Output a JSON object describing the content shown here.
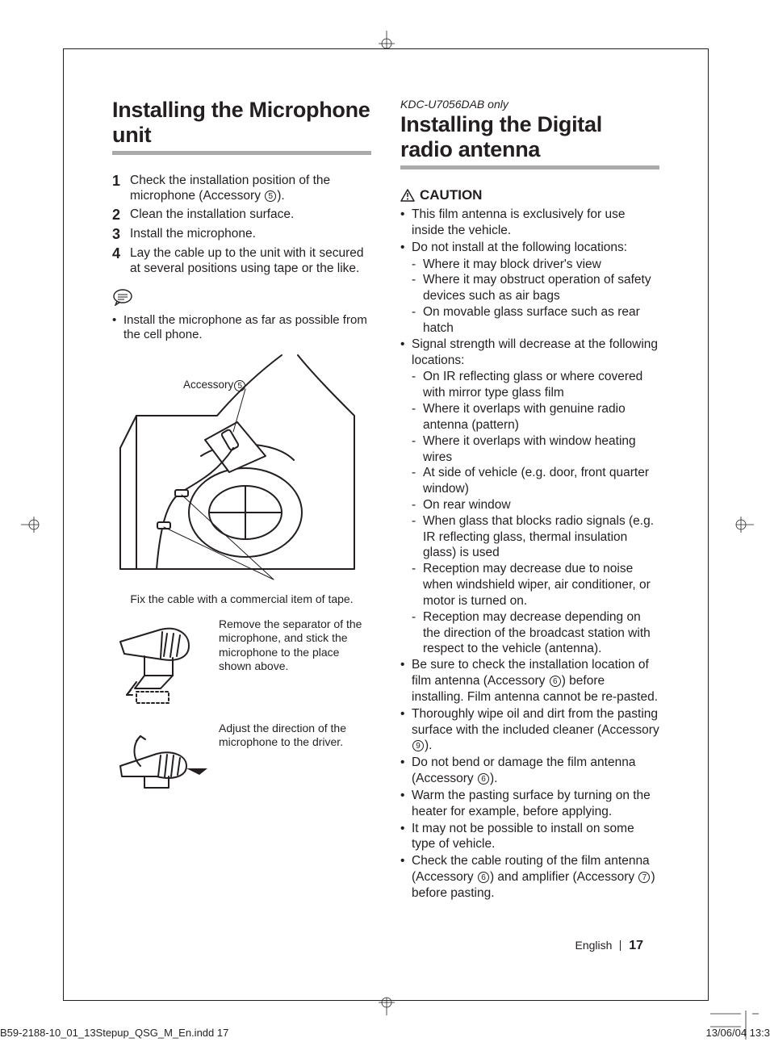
{
  "left": {
    "title": "Installing the Microphone unit",
    "steps": [
      {
        "num": "1",
        "text_before": "Check the installation position of the microphone (Accessory ",
        "acc": "5",
        "text_after": ")."
      },
      {
        "num": "2",
        "text": "Clean the installation surface."
      },
      {
        "num": "3",
        "text": "Install the microphone."
      },
      {
        "num": "4",
        "text": "Lay the cable up to the unit with it secured at several positions using tape or the like."
      }
    ],
    "note": "Install the microphone as far as possible from the cell phone.",
    "fig_main_label_prefix": "Accessory",
    "fig_main_label_acc": "5",
    "fig_main_caption": "Fix the cable with a commercial item of tape.",
    "fig2_caption": "Remove the separator of the microphone, and stick the microphone to the place shown above.",
    "fig3_caption": "Adjust the direction of the microphone to the driver."
  },
  "right": {
    "model_note": "KDC-U7056DAB only",
    "title": "Installing the Digital radio antenna",
    "caution_label": "CAUTION",
    "caution": [
      {
        "text": "This film antenna is exclusively for use inside the vehicle."
      },
      {
        "text": "Do not install at the following locations:",
        "sub": [
          "Where it may block driver's view",
          "Where it may obstruct operation of safety devices such as air bags",
          "On movable glass surface such as rear hatch"
        ]
      },
      {
        "text": "Signal strength will decrease at the following locations:",
        "sub": [
          "On IR reflecting glass or where covered with mirror type glass film",
          "Where it overlaps with genuine radio antenna (pattern)",
          "Where it overlaps with window heating wires",
          "At side of vehicle (e.g. door, front quarter window)",
          "On rear window",
          "When glass that blocks radio signals (e.g. IR reflecting glass, thermal insulation glass) is used",
          "Reception may decrease due to noise when windshield wiper, air conditioner, or motor is turned on.",
          "Reception may decrease depending on the direction of the broadcast station with respect to the vehicle (antenna)."
        ]
      },
      {
        "text_before": "Be sure to check the installation location of film antenna (Accessory ",
        "acc": "6",
        "text_after": ") before installing. Film antenna cannot be re-pasted."
      },
      {
        "text_before": "Thoroughly wipe oil and dirt from the pasting surface with the included cleaner (Accessory ",
        "acc": "9",
        "text_after": ")."
      },
      {
        "text_before": "Do not bend or damage the film antenna (Accessory ",
        "acc": "6",
        "text_after": ")."
      },
      {
        "text": "Warm the pasting surface by turning on the heater for example, before applying."
      },
      {
        "text": "It may not be possible to install on some type of vehicle."
      },
      {
        "text_before": "Check the cable routing of the film antenna (Accessory ",
        "acc": "6",
        "text_mid": ") and amplifier (Accessory ",
        "acc2": "7",
        "text_after": ") before pasting."
      }
    ]
  },
  "footer": {
    "lang": "English",
    "page": "17"
  },
  "slug": {
    "file": "B59-2188-10_01_13Stepup_QSG_M_En.indd   17",
    "date": "13/06/04   13:3"
  },
  "colors": {
    "rule": "#aaaaaa",
    "text": "#231f20"
  }
}
